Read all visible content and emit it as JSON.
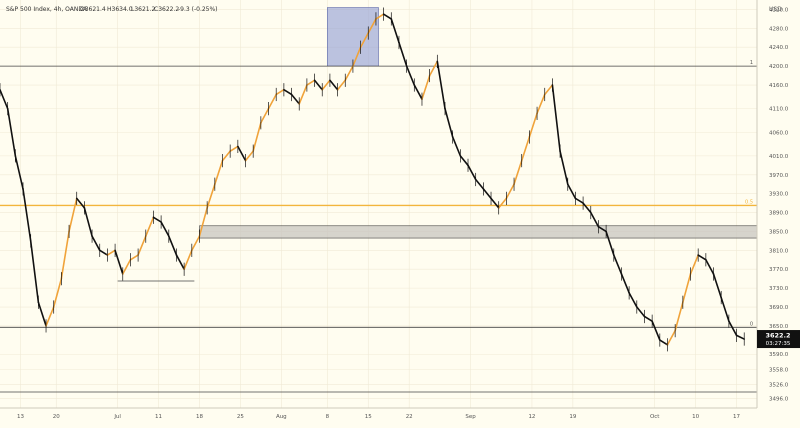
{
  "header": {
    "symbol": "S&P 500 Index, 4h, OANDA",
    "open": "O3621.4",
    "high": "H3634.0",
    "low": "L3621.2",
    "close": "C3622.2",
    "change": "-9.3 (-0.25%)"
  },
  "currency_label": "USD",
  "colors": {
    "background": "#fffdf0",
    "grid": "#f0ead6",
    "candle": "#111111",
    "line_up": "#f0a33a",
    "fib_line": "#f2b53c",
    "zone_fill": "#c8c6c0",
    "top_zone_fill": "#8e9bd3",
    "level_line": "#444444",
    "price_tag_bg": "#111111",
    "price_tag_text": "#ffffff"
  },
  "current_price": {
    "price": "3622.2",
    "countdown": "03:27:35",
    "value": 3622.2
  },
  "chart_data": {
    "type": "line",
    "title": "S&P 500 Index, 4h, OANDA",
    "ylim": [
      3476.2,
      4340.0
    ],
    "y_ticks": [
      4320.0,
      4280.0,
      4240.0,
      4200.0,
      4160.0,
      4110.0,
      4060.0,
      4010.0,
      3970.0,
      3930.0,
      3890.0,
      3850.0,
      3810.0,
      3770.0,
      3730.0,
      3690.0,
      3650.0,
      3590.0,
      3558.0,
      3526.0,
      3496.0
    ],
    "x_tick_labels": [
      "13",
      "20",
      "Jul",
      "11",
      "18",
      "25",
      "Aug",
      "8",
      "15",
      "22",
      "Sep",
      "12",
      "19",
      "Oct",
      "10",
      "17"
    ],
    "x_tick_index": [
      4,
      11,
      23,
      31,
      39,
      47,
      55,
      64,
      72,
      80,
      92,
      104,
      112,
      128,
      136,
      144
    ],
    "x_range": [
      0,
      148
    ],
    "series": [
      {
        "values": [
          4150,
          4110,
          4010,
          3940,
          3830,
          3700,
          3650,
          3690,
          3750,
          3850,
          3920,
          3900,
          3840,
          3810,
          3800,
          3810,
          3760,
          3790,
          3800,
          3840,
          3880,
          3870,
          3840,
          3800,
          3770,
          3810,
          3840,
          3900,
          3950,
          4000,
          4020,
          4030,
          4000,
          4020,
          4080,
          4110,
          4140,
          4150,
          4140,
          4120,
          4160,
          4170,
          4150,
          4170,
          4150,
          4170,
          4200,
          4240,
          4270,
          4300,
          4310,
          4300,
          4250,
          4200,
          4160,
          4130,
          4180,
          4210,
          4110,
          4050,
          4010,
          3990,
          3960,
          3940,
          3920,
          3900,
          3920,
          3950,
          4000,
          4050,
          4100,
          4140,
          4160,
          4020,
          3950,
          3920,
          3910,
          3890,
          3860,
          3850,
          3800,
          3760,
          3720,
          3690,
          3670,
          3660,
          3620,
          3610,
          3640,
          3700,
          3760,
          3800,
          3790,
          3760,
          3710,
          3660,
          3630,
          3622.2
        ],
        "x_index": [
          0,
          1,
          2,
          3,
          4,
          5,
          6,
          7,
          8,
          9,
          10,
          11,
          12,
          13,
          14,
          15,
          16,
          17,
          18,
          19,
          20,
          21,
          22,
          23,
          24,
          25,
          26,
          27,
          28,
          29,
          30,
          31,
          32,
          33,
          34,
          35,
          36,
          37,
          38,
          39,
          40,
          41,
          42,
          43,
          44,
          45,
          46,
          47,
          48,
          49,
          50,
          51,
          52,
          53,
          54,
          55,
          56,
          57,
          58,
          59,
          60,
          61,
          62,
          63,
          64,
          65,
          66,
          67,
          68,
          69,
          70,
          71,
          72,
          73,
          74,
          75,
          76,
          77,
          78,
          79,
          80,
          81,
          82,
          83,
          84,
          85,
          86,
          87,
          88,
          89,
          90,
          91,
          92,
          93,
          94,
          95,
          96,
          97
        ]
      }
    ],
    "levels": [
      {
        "price": 4200,
        "label": "1"
      },
      {
        "price": 3905,
        "label": "0.5"
      },
      {
        "price": 3647,
        "label": "0"
      },
      {
        "price": 3510,
        "label": ""
      }
    ],
    "zones": [
      {
        "price_top": 3862,
        "price_bottom": 3836
      },
      {
        "price_top": 4324,
        "price_bottom": 4200
      }
    ],
    "grid": false,
    "legend": "none"
  }
}
